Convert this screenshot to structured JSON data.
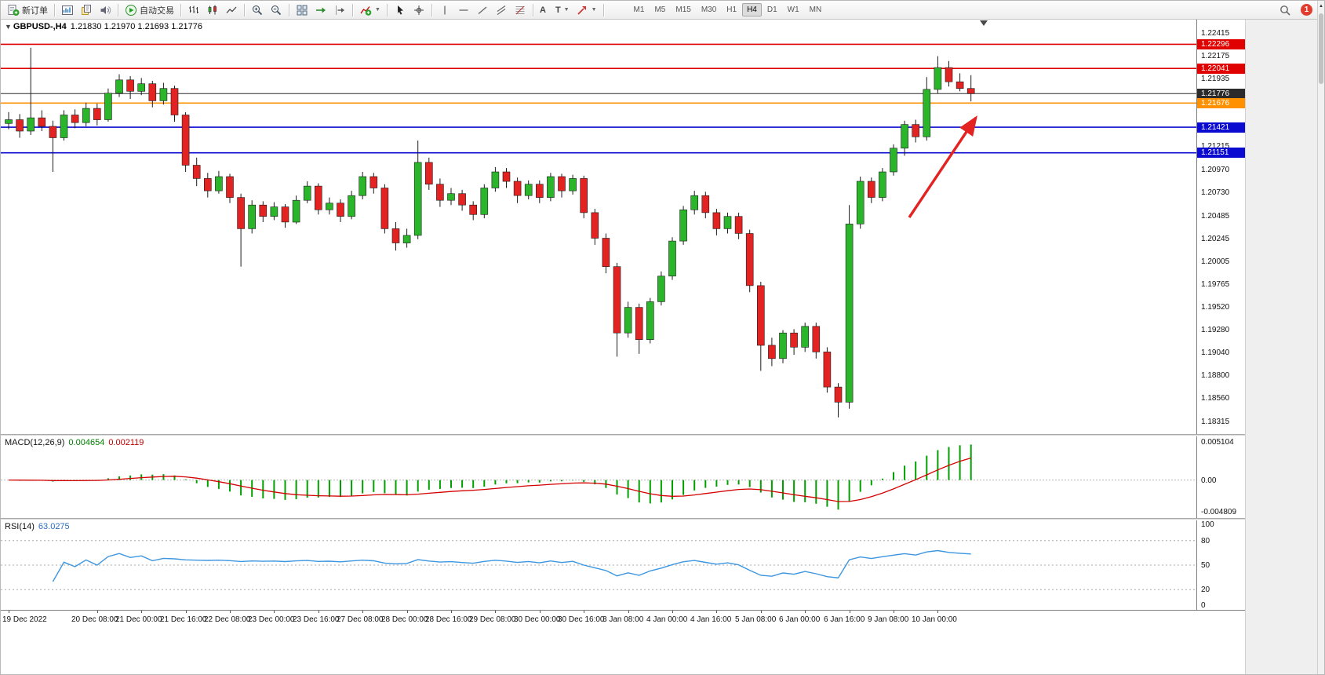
{
  "toolbar": {
    "new_order_label": "新订单",
    "autotrade_label": "自动交易",
    "timeframes": [
      "M1",
      "M5",
      "M15",
      "M30",
      "H1",
      "H4",
      "D1",
      "W1",
      "MN"
    ],
    "active_timeframe": "H4",
    "notification_count": "1"
  },
  "chart_header": {
    "symbol": "GBPUSD-,H4",
    "ohlc": "1.21830 1.21970 1.21693 1.21776"
  },
  "chart_data": {
    "type": "candlestick",
    "symbol": "GBPUSD-",
    "timeframe": "H4",
    "title": "GBPUSD-,H4 1.21830 1.21970 1.21693 1.21776",
    "current_bar": {
      "open": "1.21830",
      "high": "1.21970",
      "low": "1.21693",
      "close": "1.21776"
    },
    "price_range": [
      1.1825,
      1.2249
    ],
    "bull_color": "#2ab52a",
    "bear_color": "#e32222",
    "wick_color": "#1c1c1c",
    "price_axis_labels": [
      "1.22415",
      "1.22175",
      "1.21935",
      "1.21215",
      "1.20970",
      "1.20730",
      "1.20485",
      "1.20245",
      "1.20005",
      "1.19765",
      "1.19520",
      "1.19280",
      "1.19040",
      "1.18800",
      "1.18560",
      "1.18315"
    ],
    "hlines": [
      {
        "price": 1.22296,
        "label": "1.22296",
        "color": "#e00000",
        "kind": "resistance-upper"
      },
      {
        "price": 1.22041,
        "label": "1.22041",
        "color": "#e00000",
        "kind": "resistance-lower"
      },
      {
        "price": 1.21776,
        "label": "1.21776",
        "color": "#2b2b2b",
        "kind": "current-price"
      },
      {
        "price": 1.21676,
        "label": "1.21676",
        "color": "#ff9000",
        "kind": "level-orange"
      },
      {
        "price": 1.21421,
        "label": "1.21421",
        "color": "#0a0ad0",
        "kind": "support-upper"
      },
      {
        "price": 1.21151,
        "label": "1.21151",
        "color": "#0a0ad0",
        "kind": "support-lower"
      }
    ],
    "candles": [
      [
        1.2146,
        1.2158,
        1.214,
        1.215
      ],
      [
        1.215,
        1.2156,
        1.2131,
        1.2138
      ],
      [
        1.2138,
        1.2226,
        1.2134,
        1.2152
      ],
      [
        1.2152,
        1.216,
        1.2138,
        1.2143
      ],
      [
        1.2143,
        1.2149,
        1.2095,
        1.2131
      ],
      [
        1.2131,
        1.216,
        1.2128,
        1.2155
      ],
      [
        1.2155,
        1.2161,
        1.2141,
        1.2147
      ],
      [
        1.2147,
        1.2168,
        1.2143,
        1.2162
      ],
      [
        1.2162,
        1.2167,
        1.2144,
        1.215
      ],
      [
        1.215,
        1.2183,
        1.2148,
        1.2178
      ],
      [
        1.2178,
        1.2198,
        1.2174,
        1.2192
      ],
      [
        1.2192,
        1.2196,
        1.2172,
        1.218
      ],
      [
        1.218,
        1.2194,
        1.2176,
        1.2188
      ],
      [
        1.2188,
        1.2191,
        1.2163,
        1.217
      ],
      [
        1.217,
        1.2189,
        1.2166,
        1.2183
      ],
      [
        1.2183,
        1.2186,
        1.2148,
        1.2155
      ],
      [
        1.2155,
        1.2158,
        1.2095,
        1.2102
      ],
      [
        1.2102,
        1.211,
        1.208,
        1.2088
      ],
      [
        1.2088,
        1.2094,
        1.2068,
        1.2075
      ],
      [
        1.2075,
        1.2096,
        1.2072,
        1.209
      ],
      [
        1.209,
        1.2093,
        1.2062,
        1.2068
      ],
      [
        1.2068,
        1.2072,
        1.1995,
        1.2035
      ],
      [
        1.2035,
        1.2065,
        1.203,
        1.206
      ],
      [
        1.206,
        1.2064,
        1.2042,
        1.2048
      ],
      [
        1.2048,
        1.2063,
        1.2044,
        1.2058
      ],
      [
        1.2058,
        1.2061,
        1.2036,
        1.2042
      ],
      [
        1.2042,
        1.207,
        1.204,
        1.2065
      ],
      [
        1.2065,
        1.2085,
        1.2062,
        1.208
      ],
      [
        1.208,
        1.2083,
        1.205,
        1.2055
      ],
      [
        1.2055,
        1.2068,
        1.205,
        1.2062
      ],
      [
        1.2062,
        1.2066,
        1.2042,
        1.2048
      ],
      [
        1.2048,
        1.2075,
        1.2045,
        1.207
      ],
      [
        1.207,
        1.2095,
        1.2066,
        1.209
      ],
      [
        1.209,
        1.2094,
        1.2072,
        1.2078
      ],
      [
        1.2078,
        1.2082,
        1.203,
        1.2035
      ],
      [
        1.2035,
        1.2042,
        1.2012,
        1.202
      ],
      [
        1.202,
        1.2035,
        1.2015,
        1.2028
      ],
      [
        1.2028,
        1.2128,
        1.2024,
        1.2105
      ],
      [
        1.2105,
        1.211,
        1.2076,
        1.2082
      ],
      [
        1.2082,
        1.2088,
        1.2058,
        1.2065
      ],
      [
        1.2065,
        1.2078,
        1.206,
        1.2072
      ],
      [
        1.2072,
        1.2076,
        1.2054,
        1.206
      ],
      [
        1.206,
        1.2064,
        1.2044,
        1.205
      ],
      [
        1.205,
        1.2082,
        1.2046,
        1.2078
      ],
      [
        1.2078,
        1.21,
        1.2074,
        1.2095
      ],
      [
        1.2095,
        1.2099,
        1.2078,
        1.2085
      ],
      [
        1.2085,
        1.2089,
        1.2062,
        1.207
      ],
      [
        1.207,
        1.2086,
        1.2066,
        1.2082
      ],
      [
        1.2082,
        1.2086,
        1.2062,
        1.2068
      ],
      [
        1.2068,
        1.2094,
        1.2064,
        1.209
      ],
      [
        1.209,
        1.2093,
        1.2068,
        1.2075
      ],
      [
        1.2075,
        1.2092,
        1.2071,
        1.2088
      ],
      [
        1.2088,
        1.2091,
        1.2046,
        1.2052
      ],
      [
        1.2052,
        1.2056,
        1.2018,
        1.2025
      ],
      [
        1.2025,
        1.203,
        1.1988,
        1.1995
      ],
      [
        1.1995,
        1.1999,
        1.19,
        1.1925
      ],
      [
        1.1925,
        1.1958,
        1.192,
        1.1952
      ],
      [
        1.1952,
        1.1956,
        1.1903,
        1.1918
      ],
      [
        1.1918,
        1.1962,
        1.1914,
        1.1958
      ],
      [
        1.1958,
        1.199,
        1.1954,
        1.1985
      ],
      [
        1.1985,
        1.2026,
        1.1981,
        1.2022
      ],
      [
        1.2022,
        1.2059,
        1.2018,
        1.2055
      ],
      [
        1.2055,
        1.2075,
        1.205,
        1.207
      ],
      [
        1.207,
        1.2074,
        1.2046,
        1.2052
      ],
      [
        1.2052,
        1.2056,
        1.2028,
        1.2035
      ],
      [
        1.2035,
        1.2052,
        1.203,
        1.2048
      ],
      [
        1.2048,
        1.2052,
        1.2024,
        1.203
      ],
      [
        1.203,
        1.2034,
        1.1968,
        1.1975
      ],
      [
        1.1975,
        1.1979,
        1.1885,
        1.1912
      ],
      [
        1.1912,
        1.192,
        1.189,
        1.1898
      ],
      [
        1.1898,
        1.1928,
        1.1893,
        1.1925
      ],
      [
        1.1925,
        1.1929,
        1.1902,
        1.191
      ],
      [
        1.191,
        1.1936,
        1.1905,
        1.1932
      ],
      [
        1.1932,
        1.1936,
        1.1898,
        1.1905
      ],
      [
        1.1905,
        1.191,
        1.1862,
        1.1868
      ],
      [
        1.1868,
        1.1872,
        1.1836,
        1.1852
      ],
      [
        1.1852,
        1.206,
        1.1845,
        1.204
      ],
      [
        1.204,
        1.209,
        1.2035,
        1.2085
      ],
      [
        1.2085,
        1.2089,
        1.2062,
        1.2068
      ],
      [
        1.2068,
        1.2099,
        1.2064,
        1.2095
      ],
      [
        1.2095,
        1.2124,
        1.2091,
        1.212
      ],
      [
        1.212,
        1.2149,
        1.2112,
        1.2145
      ],
      [
        1.2145,
        1.215,
        1.2126,
        1.2132
      ],
      [
        1.2132,
        1.2195,
        1.2128,
        1.2182
      ],
      [
        1.2182,
        1.2217,
        1.2178,
        1.2205
      ],
      [
        1.2205,
        1.2212,
        1.2185,
        1.219
      ],
      [
        1.219,
        1.2199,
        1.218,
        1.2183
      ],
      [
        1.2183,
        1.2197,
        1.21693,
        1.21776
      ]
    ],
    "time_axis": {
      "labels": [
        "19 Dec 2022",
        "20 Dec 08:00",
        "21 Dec 00:00",
        "21 Dec 16:00",
        "22 Dec 08:00",
        "23 Dec 00:00",
        "23 Dec 16:00",
        "27 Dec 08:00",
        "28 Dec 00:00",
        "28 Dec 16:00",
        "29 Dec 08:00",
        "30 Dec 00:00",
        "30 Dec 16:00",
        "3 Jan 08:00",
        "4 Jan 00:00",
        "4 Jan 16:00",
        "5 Jan 08:00",
        "6 Jan 00:00",
        "6 Jan 16:00",
        "9 Jan 08:00",
        "10 Jan 00:00"
      ],
      "bar_indexes": [
        0,
        8,
        12,
        16,
        20,
        24,
        28,
        32,
        36,
        40,
        44,
        48,
        52,
        56,
        60,
        64,
        68,
        72,
        76,
        80,
        84
      ]
    },
    "annotation_arrow": {
      "color": "#e42222"
    },
    "indicators": {
      "macd": {
        "name": "MACD(12,26,9)",
        "value_main": "0.004654",
        "value_signal": "0.002119",
        "scale_labels": [
          "0.005104",
          "0.00",
          "-0.004809"
        ],
        "histogram_color": "#00a000",
        "signal_color": "#d40000"
      },
      "rsi": {
        "name": "RSI(14)",
        "value": "63.0275",
        "scale_labels": [
          "100",
          "80",
          "50",
          "20",
          "0"
        ],
        "levels": [
          80,
          50,
          20
        ],
        "line_color": "#3c96e0"
      }
    }
  }
}
